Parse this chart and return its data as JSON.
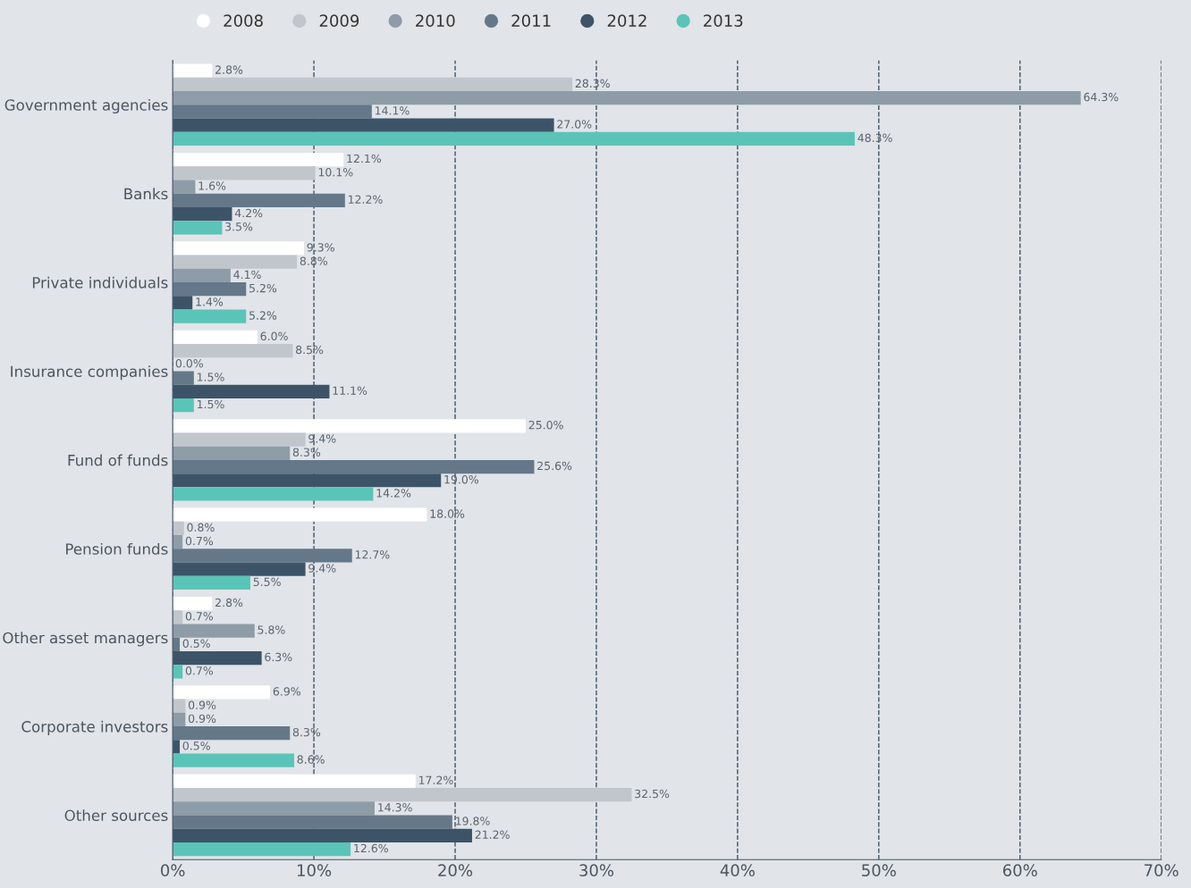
{
  "chart_data": {
    "type": "bar",
    "orientation": "horizontal",
    "categories": [
      "Government agencies",
      "Banks",
      "Private individuals",
      "Insurance companies",
      "Fund of funds",
      "Pension funds",
      "Other asset managers",
      "Corporate investors",
      "Other sources"
    ],
    "series": [
      {
        "name": "2008",
        "color": "#ffffff",
        "values": [
          2.8,
          12.1,
          9.3,
          6.0,
          25.0,
          18.0,
          2.8,
          6.9,
          17.2
        ],
        "value_labels": [
          "2.8%",
          "12.1%",
          "9.3%",
          "6.0%",
          "25.0%",
          "18.0%",
          "2.8%",
          "6.9%",
          "17.2%"
        ]
      },
      {
        "name": "2009",
        "color": "#c0c6cc",
        "values": [
          28.3,
          10.1,
          8.8,
          8.5,
          9.4,
          0.8,
          0.7,
          0.9,
          32.5
        ],
        "value_labels": [
          "28.3%",
          "10.1%",
          "8.8%",
          "8.5%",
          "9.4%",
          "0.8%",
          "0.7%",
          "0.9%",
          "32.5%"
        ]
      },
      {
        "name": "2010",
        "color": "#8e9ca8",
        "values": [
          64.3,
          1.6,
          4.1,
          0.0,
          8.3,
          0.7,
          5.8,
          0.9,
          14.3
        ],
        "value_labels": [
          "64.3%",
          "1.6%",
          "4.1%",
          "0.0%",
          "8.3%",
          "0.7%",
          "5.8%",
          "0.9%",
          "14.3%"
        ]
      },
      {
        "name": "2011",
        "color": "#65788a",
        "values": [
          14.1,
          12.2,
          5.2,
          1.5,
          25.6,
          12.7,
          0.5,
          8.3,
          19.8
        ],
        "value_labels": [
          "14.1%",
          "12.2%",
          "5.2%",
          "1.5%",
          "25.6%",
          "12.7%",
          "0.5%",
          "8.3%",
          "19.8%"
        ]
      },
      {
        "name": "2012",
        "color": "#3d5468",
        "values": [
          27.0,
          4.2,
          1.4,
          11.1,
          19.0,
          9.4,
          6.3,
          0.5,
          21.2
        ],
        "value_labels": [
          "27.0%",
          "4.2%",
          "1.4%",
          "11.1%",
          "19.0%",
          "9.4%",
          "6.3%",
          "0.5%",
          "21.2%"
        ]
      },
      {
        "name": "2013",
        "color": "#5bc4b8",
        "values": [
          48.3,
          3.5,
          5.2,
          1.5,
          14.2,
          5.5,
          0.7,
          8.6,
          12.6
        ],
        "value_labels": [
          "48.3%",
          "3.5%",
          "5.2%",
          "1.5%",
          "14.2%",
          "5.5%",
          "0.7%",
          "8.6%",
          "12.6%"
        ]
      }
    ],
    "xlim": [
      0,
      70
    ],
    "xticks": [
      {
        "value": 0,
        "label": "0%"
      },
      {
        "value": 10,
        "label": "10%"
      },
      {
        "value": 20,
        "label": "20%"
      },
      {
        "value": 30,
        "label": "30%"
      },
      {
        "value": 40,
        "label": "40%"
      },
      {
        "value": 50,
        "label": "50%"
      },
      {
        "value": 60,
        "label": "60%"
      },
      {
        "value": 70,
        "label": "70%"
      }
    ],
    "grid": "x",
    "legend": "top left",
    "marker": "circle",
    "line_style": "dashed"
  }
}
